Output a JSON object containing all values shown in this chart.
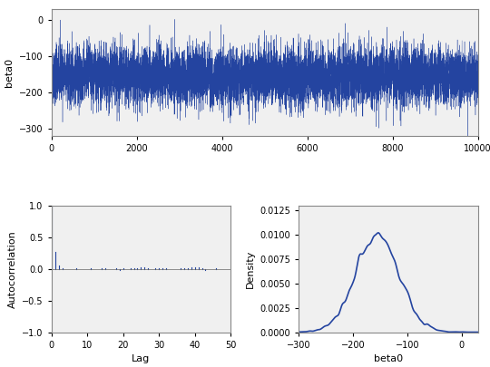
{
  "n_samples": 10000,
  "trace_mean": -155,
  "trace_std": 40,
  "trace_seed": 42,
  "trace_ylim": [
    -320,
    30
  ],
  "trace_yticks": [
    0,
    -100,
    -200,
    -300
  ],
  "trace_xlim": [
    0,
    10000
  ],
  "trace_xticks": [
    0,
    2000,
    4000,
    6000,
    8000,
    10000
  ],
  "trace_ylabel": "beta0",
  "acf_ylim": [
    -1.0,
    1.0
  ],
  "acf_yticks": [
    -1.0,
    -0.5,
    0.0,
    0.5,
    1.0
  ],
  "acf_xlim": [
    0,
    50
  ],
  "acf_xticks": [
    0,
    10,
    20,
    30,
    40,
    50
  ],
  "acf_ylabel": "Autocorrelation",
  "acf_xlabel": "Lag",
  "acf_nlags": 50,
  "density_ylim": [
    0,
    0.013
  ],
  "density_yticks": [
    0.0,
    0.0025,
    0.005,
    0.0075,
    0.01,
    0.0125
  ],
  "density_xlim": [
    -300,
    30
  ],
  "density_xticks": [
    -300,
    -200,
    -100,
    0
  ],
  "density_ylabel": "Density",
  "density_xlabel": "beta0",
  "line_color": "#2444a0",
  "bg_color": "#f0f0f0",
  "fig_bg_color": "#ffffff",
  "acf_bar_width": 0.6,
  "kde_bw": 0.08
}
